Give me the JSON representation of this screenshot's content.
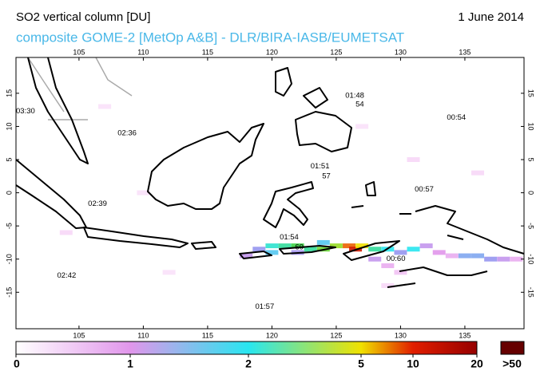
{
  "header": {
    "title": "SO2 vertical column [DU]",
    "date": "1 June 2014",
    "subtitle": "composite GOME-2 [MetOp A&B] - DLR/BIRA-IASB/EUMETSAT"
  },
  "map": {
    "lonlim": [
      100.1,
      139.6
    ],
    "latlim": [
      20.4,
      -20.5
    ],
    "lonticks": [
      105,
      110,
      115,
      120,
      125,
      130,
      135
    ],
    "latticks": [
      15,
      10,
      5,
      0,
      -5,
      -10,
      -15
    ],
    "overpass_times": [
      {
        "label": "03:30",
        "lon": 100.1,
        "lat": 12.3
      },
      {
        "label": "02:36",
        "lon": 108.0,
        "lat": 9.0
      },
      {
        "label": "01:48",
        "lon": 125.7,
        "lat": 14.6
      },
      {
        "label": "54",
        "lon": 126.5,
        "lat": 13.3
      },
      {
        "label": "00:54",
        "lon": 133.6,
        "lat": 11.3
      },
      {
        "label": "01:51",
        "lon": 123.0,
        "lat": 4.0
      },
      {
        "label": "57",
        "lon": 123.9,
        "lat": 2.5
      },
      {
        "label": "00:57",
        "lon": 131.1,
        "lat": 0.5
      },
      {
        "label": "02:39",
        "lon": 105.7,
        "lat": -1.7
      },
      {
        "label": "01:54",
        "lon": 120.6,
        "lat": -6.7
      },
      {
        "label": "60",
        "lon": 121.8,
        "lat": -8.2
      },
      {
        "label": "00:60",
        "lon": 128.9,
        "lat": -10.0
      },
      {
        "label": "02:42",
        "lon": 103.3,
        "lat": -12.5
      },
      {
        "label": "01:57",
        "lon": 118.7,
        "lat": -17.2
      }
    ],
    "so2_cells": [
      {
        "lon": 118,
        "lat": -9.5,
        "du": 1.2
      },
      {
        "lon": 119,
        "lat": -8.5,
        "du": 1.5
      },
      {
        "lon": 120,
        "lat": -8,
        "du": 2.2
      },
      {
        "lon": 120,
        "lat": -9,
        "du": 1.8
      },
      {
        "lon": 121,
        "lat": -8,
        "du": 2.5
      },
      {
        "lon": 122,
        "lat": -8,
        "du": 3
      },
      {
        "lon": 122,
        "lat": -9,
        "du": 1.4
      },
      {
        "lon": 123,
        "lat": -8.5,
        "du": 2.5
      },
      {
        "lon": 124,
        "lat": -8.5,
        "du": 3.5
      },
      {
        "lon": 124,
        "lat": -7.5,
        "du": 1.8
      },
      {
        "lon": 125,
        "lat": -8,
        "du": 4
      },
      {
        "lon": 126,
        "lat": -8,
        "du": 8
      },
      {
        "lon": 126.5,
        "lat": -8.5,
        "du": 12
      },
      {
        "lon": 127,
        "lat": -8,
        "du": 5
      },
      {
        "lon": 128,
        "lat": -8.5,
        "du": 2.5
      },
      {
        "lon": 128,
        "lat": -10,
        "du": 1.2
      },
      {
        "lon": 129,
        "lat": -8.5,
        "du": 2
      },
      {
        "lon": 129,
        "lat": -11,
        "du": 0.8
      },
      {
        "lon": 130,
        "lat": -9,
        "du": 1.5
      },
      {
        "lon": 130,
        "lat": -12,
        "du": 0.6
      },
      {
        "lon": 131,
        "lat": -8.5,
        "du": 2
      },
      {
        "lon": 132,
        "lat": -8,
        "du": 1.2
      },
      {
        "lon": 133,
        "lat": -9,
        "du": 1.0
      },
      {
        "lon": 134,
        "lat": -9.5,
        "du": 0.8
      },
      {
        "lon": 135,
        "lat": -9.5,
        "du": 1.6
      },
      {
        "lon": 136,
        "lat": -9.5,
        "du": 1.6
      },
      {
        "lon": 137,
        "lat": -10,
        "du": 1.5
      },
      {
        "lon": 138,
        "lat": -10,
        "du": 1.2
      },
      {
        "lon": 139,
        "lat": -10,
        "du": 0.8
      },
      {
        "lon": 110,
        "lat": 0,
        "du": 0.3
      },
      {
        "lon": 104,
        "lat": -6,
        "du": 0.4
      },
      {
        "lon": 131,
        "lat": 5,
        "du": 0.4
      },
      {
        "lon": 127,
        "lat": 10,
        "du": 0.3
      },
      {
        "lon": 107,
        "lat": 13,
        "du": 0.3
      },
      {
        "lon": 136,
        "lat": 3,
        "du": 0.4
      },
      {
        "lon": 112,
        "lat": -12,
        "du": 0.3
      },
      {
        "lon": 129,
        "lat": -14,
        "du": 0.4
      }
    ]
  },
  "colorbar": {
    "ticks": [
      0,
      1,
      2,
      5,
      10,
      20
    ],
    "overflow_label": ">50"
  }
}
